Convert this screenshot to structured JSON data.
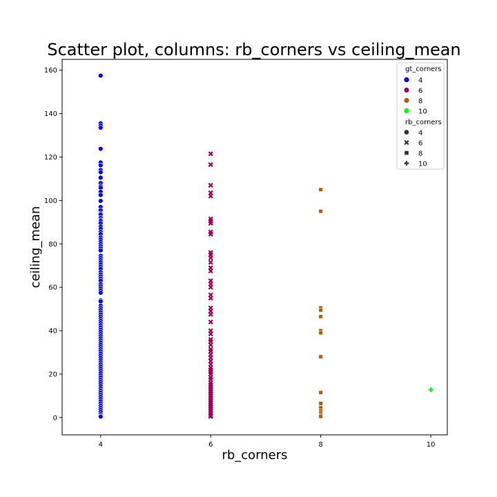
{
  "chart_data": {
    "type": "scatter",
    "title": "Scatter plot, columns: rb_corners vs ceiling_mean",
    "xlabel": "rb_corners",
    "ylabel": "ceiling_mean",
    "xlim": [
      3.3,
      10.3
    ],
    "ylim": [
      -8,
      165
    ],
    "xticks": [
      4,
      6,
      8,
      10
    ],
    "yticks": [
      0,
      20,
      40,
      60,
      80,
      100,
      120,
      140,
      160
    ],
    "grid": false,
    "legend_position": "top-right",
    "legend": {
      "hue_title": "gt_corners",
      "hue_entries": [
        {
          "label": "4",
          "color": "#0000ff"
        },
        {
          "label": "6",
          "color": "#a0005a"
        },
        {
          "label": "8",
          "color": "#a85e10"
        },
        {
          "label": "10",
          "color": "#00ff00"
        }
      ],
      "style_title": "rb_corners",
      "style_entries": [
        {
          "label": "4",
          "marker": "circle"
        },
        {
          "label": "6",
          "marker": "x"
        },
        {
          "label": "8",
          "marker": "square"
        },
        {
          "label": "10",
          "marker": "plus"
        }
      ]
    },
    "series": [
      {
        "gt_corners": "4",
        "rb_corners": "4",
        "x": 4,
        "color": "#0000ff",
        "marker": "circle",
        "y": [
          157.5,
          135.5,
          134.5,
          133.5,
          123.8,
          117.5,
          116.2,
          114,
          113,
          110.5,
          108,
          106.5,
          105.8,
          104,
          102.5,
          99.8,
          97,
          95.5,
          94,
          93.5,
          92,
          91,
          90.5,
          89.5,
          88,
          87,
          85.5,
          84.5,
          83,
          82,
          81,
          80,
          79,
          78,
          77,
          74.5,
          73.5,
          72.5,
          71.5,
          70.5,
          69.5,
          68.5,
          67,
          66,
          65,
          64,
          63,
          61.5,
          60.5,
          59.5,
          58.5,
          57.5,
          54,
          53.5,
          51.5,
          50.5,
          49.5,
          48.5,
          47.5,
          46.5,
          45.5,
          44.5,
          43.5,
          42.5,
          41.5,
          40.5,
          39.5,
          38.5,
          37.5,
          36.5,
          35.5,
          34.5,
          33.5,
          32.5,
          31.5,
          30.5,
          29.5,
          28.5,
          27.5,
          26.5,
          25.5,
          24.5,
          23.5,
          22.5,
          21.5,
          20.5,
          19.5,
          18.5,
          17.5,
          16.5,
          15.5,
          14.5,
          13.5,
          12.5,
          11.5,
          10.5,
          9.5,
          8.5,
          7.5,
          6.5,
          5.5,
          4.5,
          3.5,
          2.5,
          1.5,
          0.8,
          0.4
        ]
      },
      {
        "gt_corners": "6",
        "rb_corners": "6",
        "x": 6,
        "color": "#a0005a",
        "marker": "x",
        "y": [
          121.5,
          116.5,
          107,
          103.5,
          102,
          91.5,
          90.5,
          89.5,
          85.5,
          84.5,
          76,
          75,
          73.5,
          71.5,
          69,
          67.5,
          63,
          61.5,
          60,
          56.5,
          55,
          50.5,
          49,
          47.5,
          44,
          40,
          38.5,
          36,
          35,
          33.5,
          31.5,
          30.5,
          29,
          27.5,
          26,
          24.5,
          23,
          22,
          21,
          20,
          18.5,
          17.5,
          16,
          15,
          14,
          13,
          12,
          11,
          10,
          9,
          8,
          7,
          6,
          5,
          4,
          3,
          2,
          1,
          0.5
        ]
      },
      {
        "gt_corners": "8",
        "rb_corners": "8",
        "x": 8,
        "color": "#a85e10",
        "marker": "square",
        "y": [
          105,
          95,
          50.5,
          49.5,
          46.5,
          40,
          39,
          28,
          11.5,
          6.5,
          4.5,
          3,
          2,
          1,
          0.5
        ]
      },
      {
        "gt_corners": "10",
        "rb_corners": "10",
        "x": 10,
        "color": "#00ff00",
        "marker": "plus",
        "y": [
          12.8
        ]
      }
    ]
  }
}
